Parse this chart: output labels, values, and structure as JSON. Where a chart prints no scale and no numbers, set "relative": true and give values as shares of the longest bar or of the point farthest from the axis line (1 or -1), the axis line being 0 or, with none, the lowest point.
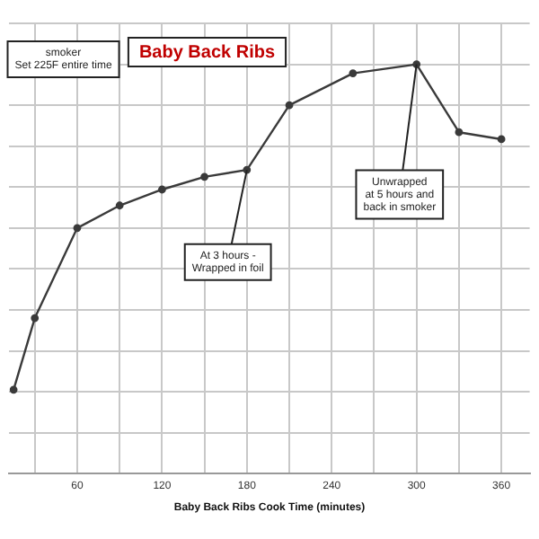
{
  "chart_data": {
    "type": "line",
    "title": "Baby Back Ribs",
    "xlabel": "Baby Back Ribs Cook Time (minutes)",
    "x": [
      15,
      30,
      60,
      90,
      120,
      150,
      180,
      210,
      255,
      300,
      330,
      360
    ],
    "series": [
      {
        "color": "#3a3a3a",
        "values": [
          0.205,
          0.38,
          0.6,
          0.655,
          0.694,
          0.725,
          0.742,
          0.9,
          0.978,
          1,
          0.834,
          0.817
        ]
      }
    ],
    "relative": true,
    "xlim": [
      12,
      380
    ],
    "xticks": [
      {
        "value": 30,
        "label": null
      },
      60,
      {
        "value": 90,
        "label": null
      },
      120,
      {
        "value": 150,
        "label": null
      },
      180,
      {
        "value": 210,
        "label": null
      },
      240,
      {
        "value": 270,
        "label": null
      },
      300,
      {
        "value": 330,
        "label": null
      },
      360
    ],
    "annotations": [
      "smoker\nSet 225F entire time",
      {
        "text": "At 3 hours -\nWrapped in foil",
        "x": 180,
        "y": 0.742
      },
      {
        "text": "Unwrapped\nat 5 hours and\nback in smoker",
        "x": 300,
        "y": 1
      }
    ],
    "grid": true,
    "marker": "circle",
    "line_style": "solid",
    "legend": false
  }
}
